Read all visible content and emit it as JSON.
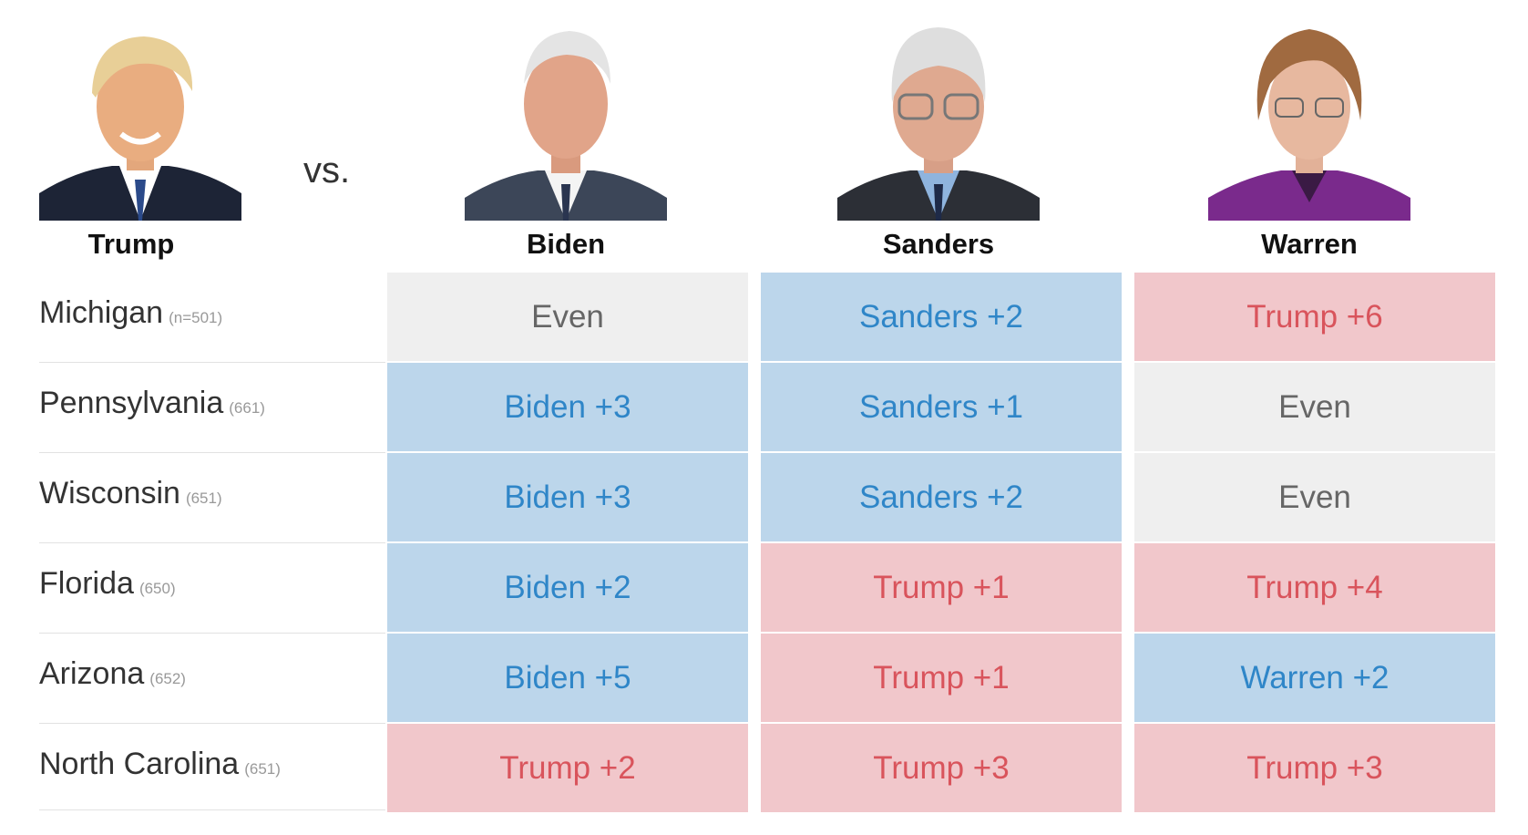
{
  "header": {
    "vs_label": "vs.",
    "incumbent": {
      "name": "Trump",
      "portrait": "trump-portrait",
      "color": "#d9545c"
    },
    "challengers": [
      {
        "name": "Biden",
        "portrait": "biden-portrait"
      },
      {
        "name": "Sanders",
        "portrait": "sanders-portrait"
      },
      {
        "name": "Warren",
        "portrait": "warren-portrait"
      }
    ]
  },
  "colors": {
    "dem": "#2f86c8",
    "dem_bg": "#bcd6eb",
    "rep": "#d9545c",
    "rep_bg": "#f1c7cb",
    "even": "#666666",
    "even_bg": "#efefef"
  },
  "chart_data": {
    "type": "table",
    "columns": [
      "Biden",
      "Sanders",
      "Warren"
    ],
    "rows": [
      {
        "state": "Michigan",
        "n": "(n=501)",
        "cells": [
          {
            "text": "Even",
            "lean": "even"
          },
          {
            "text": "Sanders +2",
            "lean": "dem"
          },
          {
            "text": "Trump +6",
            "lean": "rep"
          }
        ]
      },
      {
        "state": "Pennsylvania",
        "n": "(661)",
        "cells": [
          {
            "text": "Biden +3",
            "lean": "dem"
          },
          {
            "text": "Sanders +1",
            "lean": "dem"
          },
          {
            "text": "Even",
            "lean": "even"
          }
        ]
      },
      {
        "state": "Wisconsin",
        "n": "(651)",
        "cells": [
          {
            "text": "Biden +3",
            "lean": "dem"
          },
          {
            "text": "Sanders +2",
            "lean": "dem"
          },
          {
            "text": "Even",
            "lean": "even"
          }
        ]
      },
      {
        "state": "Florida",
        "n": "(650)",
        "cells": [
          {
            "text": "Biden +2",
            "lean": "dem"
          },
          {
            "text": "Trump +1",
            "lean": "rep"
          },
          {
            "text": "Trump +4",
            "lean": "rep"
          }
        ]
      },
      {
        "state": "Arizona",
        "n": "(652)",
        "cells": [
          {
            "text": "Biden +5",
            "lean": "dem"
          },
          {
            "text": "Trump +1",
            "lean": "rep"
          },
          {
            "text": "Warren +2",
            "lean": "dem"
          }
        ]
      },
      {
        "state": "North Carolina",
        "n": "(651)",
        "cells": [
          {
            "text": "Trump +2",
            "lean": "rep"
          },
          {
            "text": "Trump +3",
            "lean": "rep"
          },
          {
            "text": "Trump +3",
            "lean": "rep"
          }
        ]
      }
    ]
  }
}
